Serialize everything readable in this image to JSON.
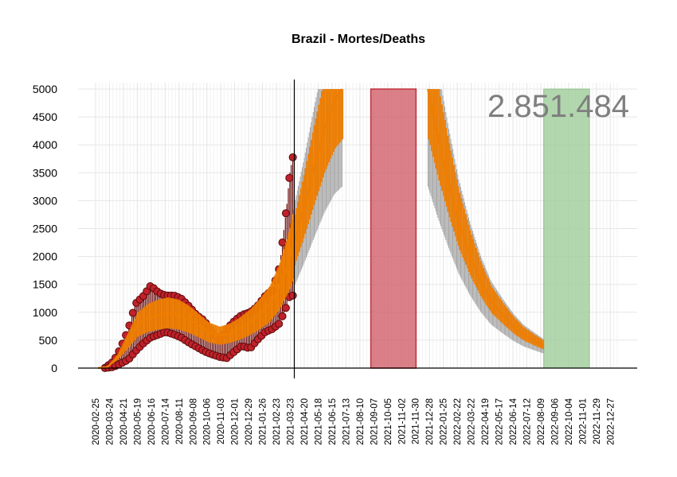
{
  "chart_data": {
    "type": "line",
    "title": "Brazil - Mortes/Deaths",
    "total_label": "2.851.484",
    "ylim": [
      0,
      5000
    ],
    "yticks": [
      0,
      500,
      1000,
      1500,
      2000,
      2500,
      3000,
      3500,
      4000,
      4500,
      5000
    ],
    "yticks_text": [
      "0",
      "500",
      "1000",
      "1500",
      "2000",
      "2500",
      "3000",
      "3500",
      "4000",
      "4500",
      "5000"
    ],
    "x_start": "2020-02-25",
    "x_end": "2023-01-10",
    "xticks": [
      "2020-02-25",
      "2020-03-24",
      "2020-04-21",
      "2020-05-19",
      "2020-06-16",
      "2020-07-14",
      "2020-08-11",
      "2020-09-08",
      "2020-10-06",
      "2020-11-03",
      "2020-12-01",
      "2020-12-29",
      "2021-01-26",
      "2021-02-23",
      "2021-03-23",
      "2021-04-20",
      "2021-05-18",
      "2021-06-15",
      "2021-07-13",
      "2021-08-10",
      "2021-09-07",
      "2021-10-05",
      "2021-11-02",
      "2021-11-30",
      "2021-12-28",
      "2022-01-25",
      "2022-02-22",
      "2022-03-22",
      "2022-04-19",
      "2022-05-17",
      "2022-06-14",
      "2022-07-12",
      "2022-08-09",
      "2022-09-06",
      "2022-10-04",
      "2022-11-01",
      "2022-11-29",
      "2022-12-27"
    ],
    "forecast_start": "2021-03-31",
    "red_band": [
      "2021-09-01",
      "2021-12-01"
    ],
    "green_band": [
      "2022-08-15",
      "2022-11-15"
    ],
    "observed": {
      "x": [
        "2020-03-15",
        "2020-04-01",
        "2020-04-15",
        "2020-05-01",
        "2020-05-15",
        "2020-06-01",
        "2020-06-15",
        "2020-07-01",
        "2020-07-15",
        "2020-08-01",
        "2020-08-15",
        "2020-09-01",
        "2020-09-15",
        "2020-10-01",
        "2020-10-15",
        "2020-11-01",
        "2020-11-15",
        "2020-12-01",
        "2020-12-15",
        "2021-01-01",
        "2021-01-15",
        "2021-02-01",
        "2021-02-15",
        "2021-03-01",
        "2021-03-15",
        "2021-03-22",
        "2021-03-30"
      ],
      "low": [
        0,
        20,
        80,
        150,
        300,
        450,
        550,
        600,
        650,
        600,
        550,
        450,
        380,
        300,
        250,
        200,
        180,
        300,
        400,
        350,
        500,
        650,
        700,
        800,
        1100,
        1300,
        1300
      ],
      "high": [
        5,
        120,
        350,
        700,
        1150,
        1300,
        1480,
        1350,
        1300,
        1300,
        1250,
        1100,
        950,
        850,
        650,
        500,
        700,
        850,
        950,
        1000,
        1100,
        1300,
        1400,
        1800,
        2850,
        3500,
        3870
      ]
    },
    "fitted": {
      "x": [
        "2020-03-01",
        "2020-03-20",
        "2020-04-10",
        "2020-05-01",
        "2020-05-20",
        "2020-06-10",
        "2020-07-01",
        "2020-07-20",
        "2020-08-10",
        "2020-09-01",
        "2020-09-20",
        "2020-10-10",
        "2020-11-01",
        "2020-11-20",
        "2020-12-10",
        "2021-01-01",
        "2021-01-20",
        "2021-02-10",
        "2021-03-01",
        "2021-03-20",
        "2021-03-31"
      ],
      "y": [
        0,
        20,
        200,
        500,
        780,
        900,
        960,
        990,
        960,
        870,
        760,
        640,
        580,
        620,
        700,
        820,
        960,
        1150,
        1450,
        1900,
        2250
      ]
    },
    "forecast": {
      "rising": {
        "x": [
          "2021-03-31",
          "2021-04-20",
          "2021-05-10",
          "2021-05-31",
          "2021-06-20",
          "2021-07-05"
        ],
        "y": [
          2250,
          2900,
          3600,
          4300,
          4800,
          5000
        ]
      },
      "falling": {
        "x": [
          "2021-12-25",
          "2022-01-15",
          "2022-02-05",
          "2022-02-25",
          "2022-03-20",
          "2022-04-10",
          "2022-05-01",
          "2022-05-25",
          "2022-06-15",
          "2022-07-05",
          "2022-07-25",
          "2022-08-15"
        ],
        "y": [
          5000,
          4100,
          3300,
          2600,
          2000,
          1550,
          1200,
          950,
          750,
          600,
          500,
          400
        ]
      }
    },
    "grid": true,
    "colors": {
      "observed_point": "#c0212a",
      "observed_edge": "#5a0c0c",
      "observed_range": "#6b0f0f",
      "fit_line": "#ee7d00",
      "uncertainty": "#a6a6a6",
      "red_band": "#cf5560",
      "green_band": "#9fcd9a",
      "grid": "#e5e5e5"
    }
  }
}
